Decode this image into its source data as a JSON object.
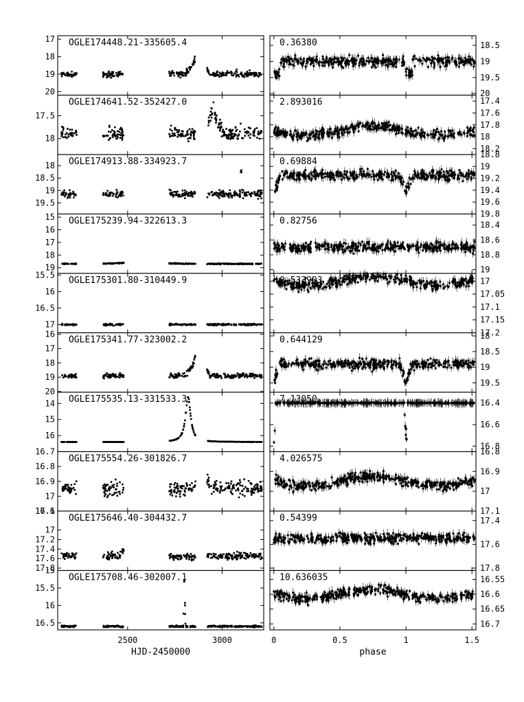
{
  "chart_data": {
    "type": "scatter",
    "layout": "10 rows x 2 columns; left = light curve vs HJD-2450000, right = phase-folded light curve; magnitude axes inverted",
    "left_axis": {
      "xlabel": "HJD-2450000",
      "xticks": [
        2500,
        3000
      ],
      "xlim": [
        2130,
        3220
      ]
    },
    "right_axis": {
      "xlabel": "phase",
      "xticks": [
        "0",
        "0.5",
        "1",
        "1.5"
      ],
      "xlim": [
        -0.03,
        1.53
      ]
    },
    "panels": [
      {
        "name": "OGLE174448.21-335605.4",
        "period": "0.36380",
        "left": {
          "ylim": [
            20.2,
            16.8
          ],
          "yticks": [
            "17",
            "18",
            "19",
            "20"
          ]
        },
        "right": {
          "ylim": [
            20.05,
            18.2
          ],
          "yticks": [
            "18.5",
            "19",
            "19.5",
            "20"
          ]
        },
        "base": 19.0,
        "scatter": 0.15,
        "feature": "rise to ~17.7 near HJD 2870",
        "phase_shape": "dip"
      },
      {
        "name": "OGLE174641.52-352427.0",
        "period": "2.893016",
        "left": {
          "ylim": [
            18.35,
            17.05
          ],
          "yticks": [
            "17.5",
            "18"
          ]
        },
        "right": {
          "ylim": [
            18.3,
            17.3
          ],
          "yticks": [
            "17.4",
            "17.6",
            "17.8",
            "18",
            "18.2"
          ]
        },
        "base": 17.9,
        "scatter": 0.12,
        "feature": "brightening to ~17.3 around HJD 2950",
        "phase_shape": "sinusoid"
      },
      {
        "name": "OGLE174913.88-334923.7",
        "period": "0.69884",
        "left": {
          "ylim": [
            19.95,
            17.55
          ],
          "yticks": [
            "17.5",
            "18",
            "18.5",
            "19",
            "19.5"
          ]
        },
        "right": {
          "ylim": [
            19.8,
            18.8
          ],
          "yticks": [
            "18.8",
            "19",
            "19.2",
            "19.4",
            "19.6",
            "19.8"
          ]
        },
        "base": 19.15,
        "scatter": 0.12,
        "feature": "spike to ~18 near HJD 3100",
        "phase_shape": "eclipse"
      },
      {
        "name": "OGLE175239.94-322613.3",
        "period": "0.82756",
        "left": {
          "ylim": [
            19.45,
            14.75
          ],
          "yticks": [
            "15",
            "16",
            "17",
            "18",
            "19"
          ]
        },
        "right": {
          "ylim": [
            19.05,
            18.25
          ],
          "yticks": [
            "18.2",
            "18.4",
            "18.6",
            "18.8",
            "19"
          ]
        },
        "base": 18.7,
        "scatter": 0.1,
        "feature": "microlensing peak ~16.1 near HJD 2580",
        "phase_shape": "flat"
      },
      {
        "name": "OGLE175301.80-310449.9",
        "period": "0.533903",
        "left": {
          "ylim": [
            17.25,
            15.45
          ],
          "yticks": [
            "15.5",
            "16",
            "16.5",
            "17"
          ]
        },
        "right": {
          "ylim": [
            17.2,
            16.97
          ],
          "yticks": [
            "17",
            "17.05",
            "17.1",
            "17.15",
            "17.2"
          ]
        },
        "base": 17.0,
        "scatter": 0.02,
        "feature": "early bright points ~15.8 near HJD 2330",
        "phase_shape": "sinusoid"
      },
      {
        "name": "OGLE175341.77-323002.2",
        "period": "0.644129",
        "left": {
          "ylim": [
            20.05,
            15.9
          ],
          "yticks": [
            "16",
            "17",
            "18",
            "19",
            "20"
          ]
        },
        "right": {
          "ylim": [
            19.8,
            17.9
          ],
          "yticks": [
            "18",
            "18.5",
            "19",
            "19.5"
          ]
        },
        "base": 18.9,
        "scatter": 0.15,
        "feature": "rise to ~16.5 near HJD 2870",
        "phase_shape": "eclipse"
      },
      {
        "name": "OGLE175535.13-331533.3",
        "period": "7.13050",
        "left": {
          "ylim": [
            17.0,
            13.3
          ],
          "yticks": [
            "14",
            "15",
            "16"
          ]
        },
        "right": {
          "ylim": [
            16.85,
            16.3
          ],
          "yticks": [
            "16.4",
            "16.6",
            "16.8"
          ]
        },
        "base": 16.4,
        "scatter": 0.01,
        "feature": "microlensing peak ~13.9 near HJD 2820",
        "phase_shape": "deep-eclipse"
      },
      {
        "name": "OGLE175554.26-301826.7",
        "period": "4.026575",
        "left": {
          "ylim": [
            17.1,
            16.7
          ],
          "yticks": [
            "16.7",
            "16.8",
            "16.9",
            "17",
            "17.1"
          ]
        },
        "right": {
          "ylim": [
            17.1,
            16.8
          ],
          "yticks": [
            "16.8",
            "16.9",
            "17",
            "17.1"
          ]
        },
        "base": 16.95,
        "scatter": 0.04,
        "feature": "rise to ~16.8 near HJD 2900",
        "phase_shape": "sinusoid"
      },
      {
        "name": "OGLE175646.40-304432.7",
        "period": "0.54399",
        "left": {
          "ylim": [
            17.85,
            16.6
          ],
          "yticks": [
            "16.6",
            "17",
            "17.2",
            "17.4",
            "17.6",
            "17.8"
          ]
        },
        "right": {
          "ylim": [
            17.82,
            17.32
          ],
          "yticks": [
            "17.4",
            "17.6",
            "17.8"
          ]
        },
        "base": 17.55,
        "scatter": 0.06,
        "feature": "hump to ~17.1 near HJD 2520",
        "phase_shape": "flat"
      },
      {
        "name": "OGLE175708.46-302007.1",
        "period": "10.636035",
        "left": {
          "ylim": [
            16.7,
            15.0
          ],
          "yticks": [
            "15",
            "15.5",
            "16",
            "16.5"
          ]
        },
        "right": {
          "ylim": [
            16.72,
            16.52
          ],
          "yticks": [
            "16.55",
            "16.6",
            "16.65",
            "16.7"
          ]
        },
        "base": 16.6,
        "scatter": 0.02,
        "feature": "short spike ~15.4 near HJD 2800",
        "phase_shape": "sinusoid"
      }
    ]
  }
}
